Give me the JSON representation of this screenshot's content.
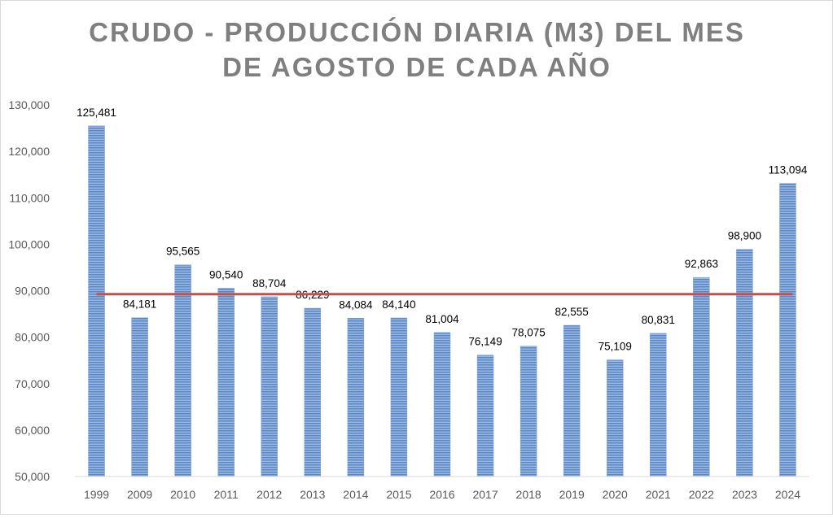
{
  "chart_data": {
    "type": "bar",
    "title": [
      "CRUDO - PRODUCCIÓN DIARIA (M3) DEL MES",
      "DE AGOSTO DE CADA AÑO"
    ],
    "xlabel": "",
    "ylabel": "",
    "categories": [
      "1999",
      "2009",
      "2010",
      "2011",
      "2012",
      "2013",
      "2014",
      "2015",
      "2016",
      "2017",
      "2018",
      "2019",
      "2020",
      "2021",
      "2022",
      "2023",
      "2024"
    ],
    "values": [
      125481,
      84181,
      95565,
      90540,
      88704,
      86229,
      84084,
      84140,
      81004,
      76149,
      78075,
      82555,
      75109,
      80831,
      92863,
      98900,
      113094
    ],
    "data_labels": [
      "125,481",
      "84,181",
      "95,565",
      "90,540",
      "88,704",
      "86,229",
      "84,084",
      "84,140",
      "81,004",
      "76,149",
      "78,075",
      "82,555",
      "75,109",
      "80,831",
      "92,863",
      "98,900",
      "113,094"
    ],
    "ylim": [
      50000,
      130000
    ],
    "yticks": [
      "50,000",
      "60,000",
      "70,000",
      "80,000",
      "90,000",
      "100,000",
      "110,000",
      "120,000",
      "130,000"
    ],
    "grid": false,
    "legend": "none",
    "average_line": {
      "value": 89265,
      "color": "#c0504d"
    },
    "bar_color": "#4f81bd"
  }
}
